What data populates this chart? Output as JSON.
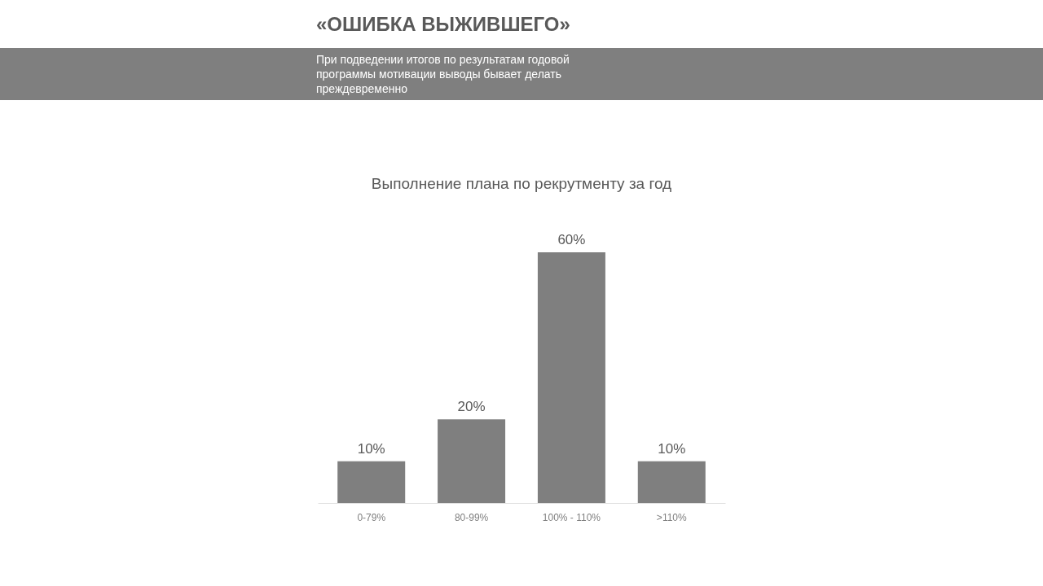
{
  "chart_data": {
    "type": "bar",
    "title": "«ОШИБКА ВЫЖИВШЕГО»",
    "subtitle": "При подведении итогов по результатам годовой программы мотивации выводы бывает делать преждевременно",
    "annotations": [
      "Выполнение плана по рекрутменту за год"
    ],
    "categories": [
      "0-79%",
      "80-99%",
      "100% - 110%",
      ">110%"
    ],
    "values": [
      10,
      20,
      60,
      10
    ],
    "value_labels": [
      "10%",
      "20%",
      "60%",
      "10%"
    ],
    "color": "#7f7f7f",
    "grid": false,
    "tick_labels": "x"
  }
}
